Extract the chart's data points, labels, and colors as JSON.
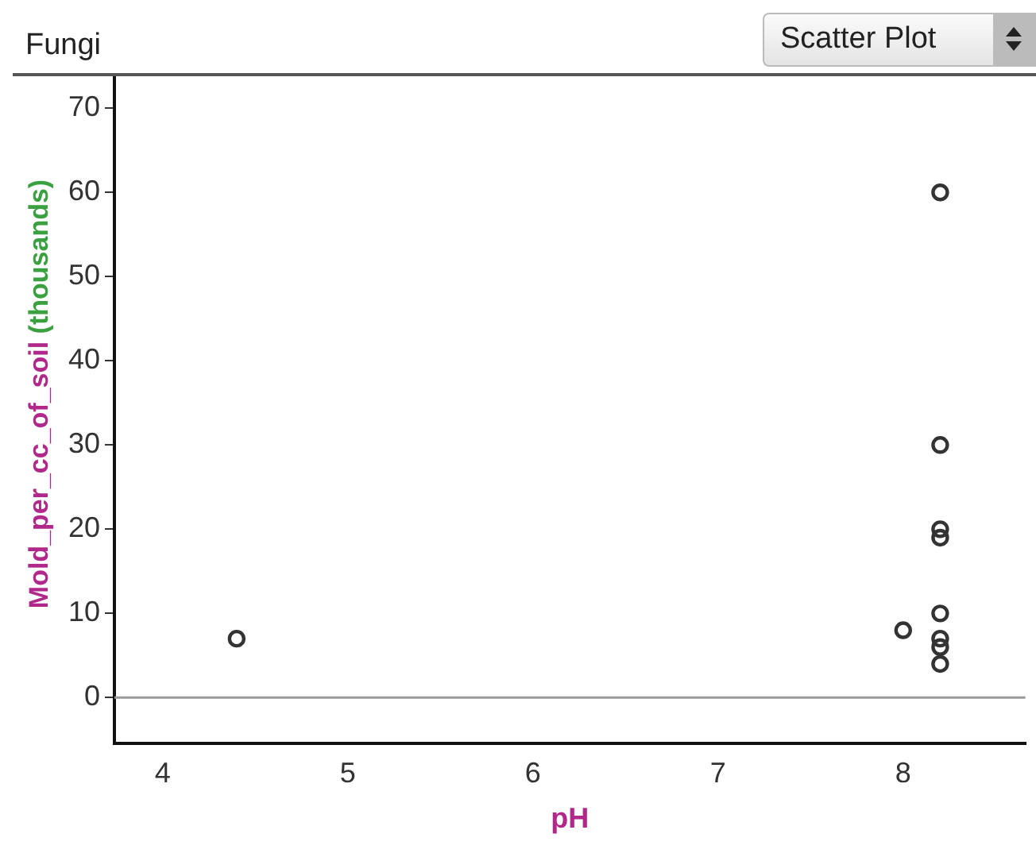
{
  "chart_data": {
    "type": "scatter",
    "title": "Fungi",
    "xlabel": "pH",
    "ylabel": "Mold_per_cc_of_soil (thousands)",
    "annotations": [
      "Scatter Plot"
    ],
    "x": [
      4.4,
      8,
      8.2,
      8.2,
      8.2,
      8.2,
      8.2,
      8.2,
      8.2,
      8.2
    ],
    "series": [
      {
        "color": "#333333",
        "values": [
          7,
          8,
          60,
          30,
          20,
          19,
          10,
          7,
          6,
          4
        ]
      }
    ],
    "xlim": [
      3.74,
      8.66
    ],
    "xticks": [
      4,
      5,
      6,
      7,
      8
    ],
    "ylim": [
      -5.4,
      73.8
    ],
    "yticks": [
      0,
      10,
      20,
      30,
      40,
      50,
      60,
      70
    ],
    "ref_lines": [
      {
        "axis": "y",
        "value": 0,
        "color": "#999999"
      }
    ],
    "marker": "circle",
    "grid": false,
    "legend": false
  }
}
